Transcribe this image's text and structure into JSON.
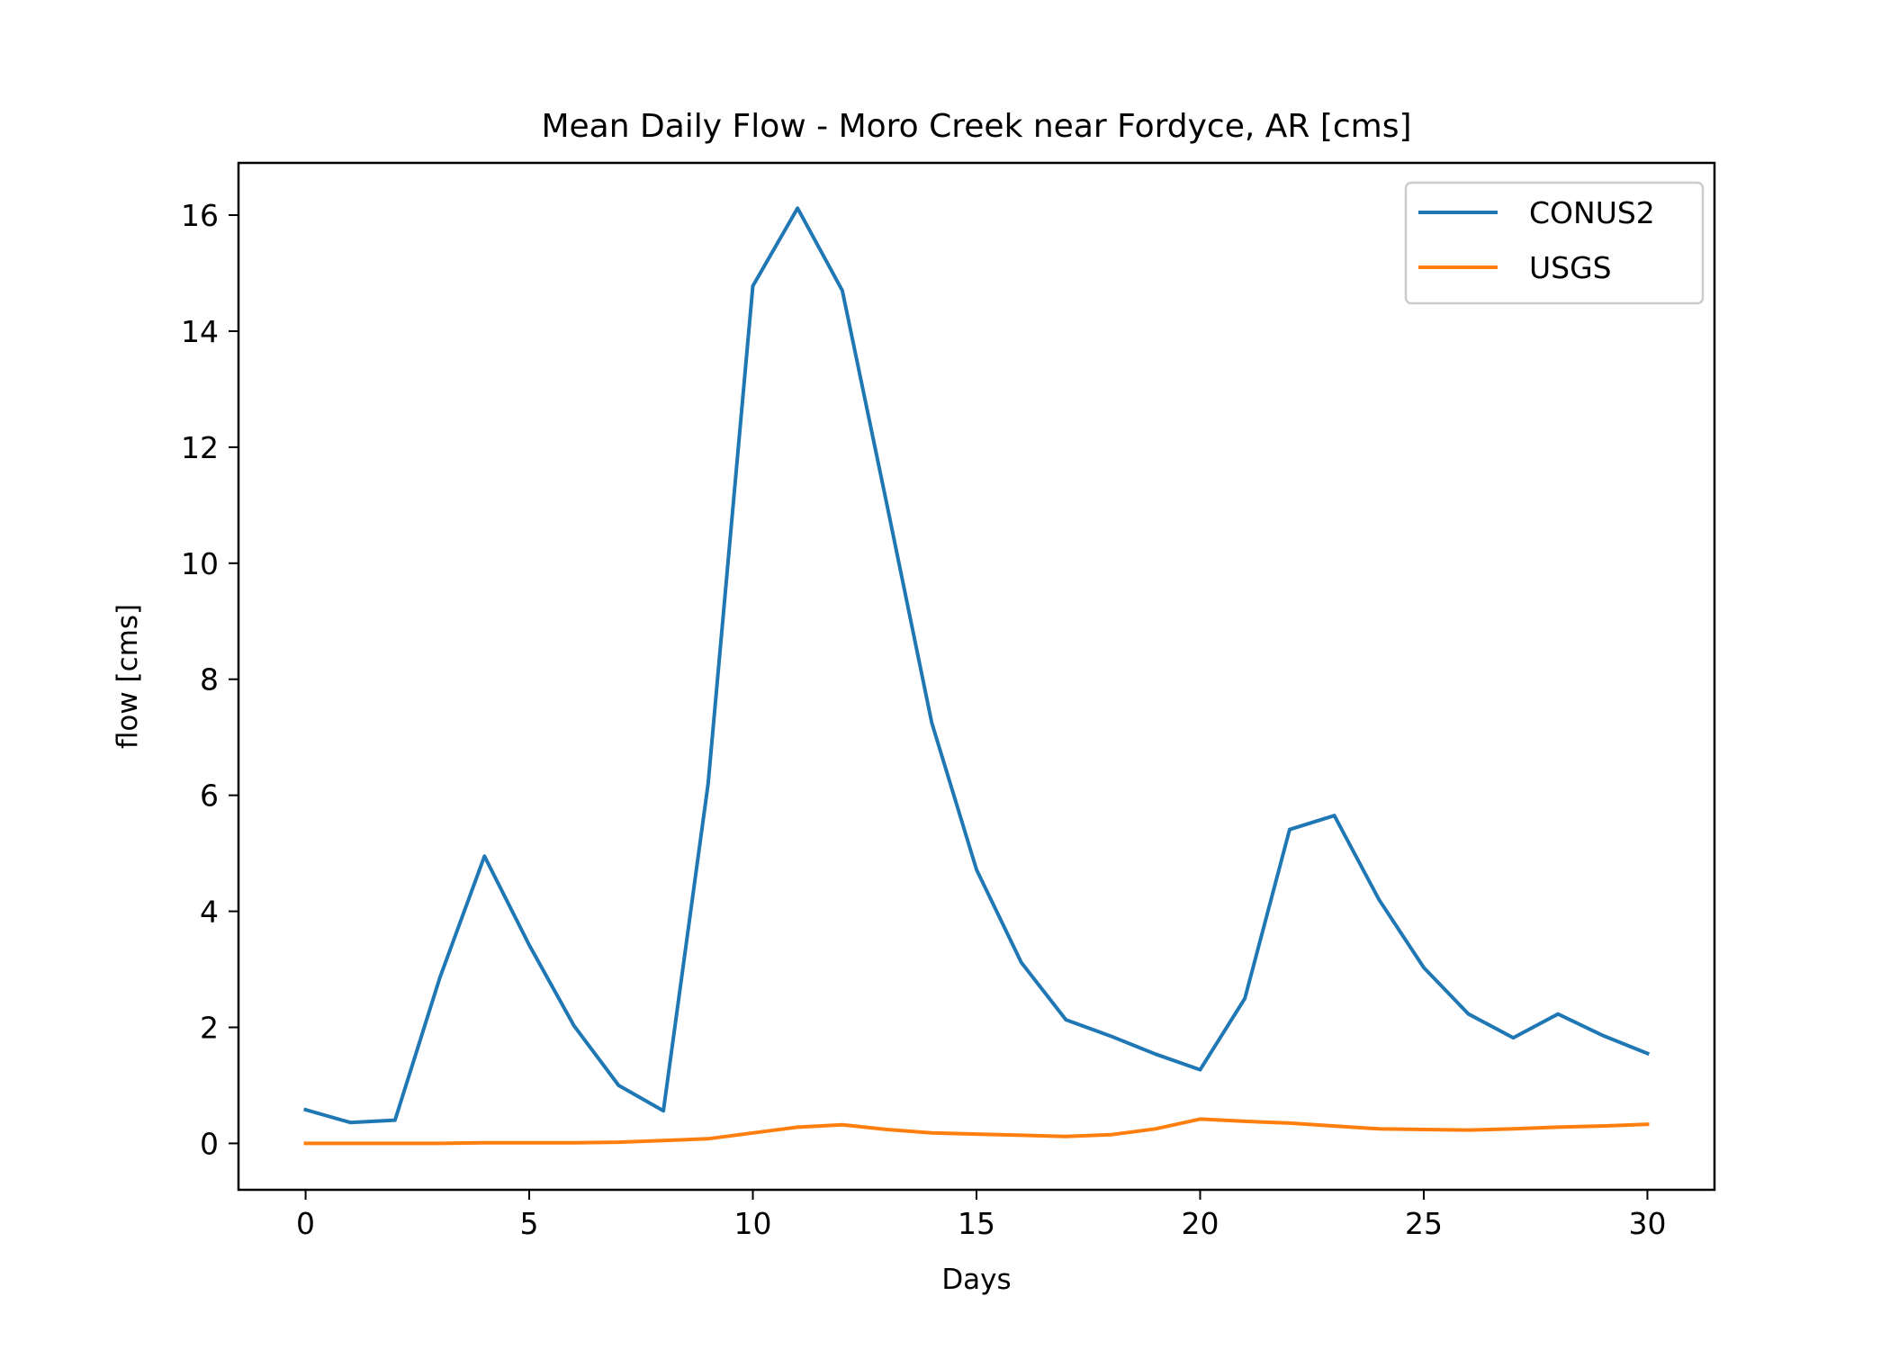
{
  "chart_data": {
    "type": "line",
    "title": "Mean Daily Flow - Moro Creek near Fordyce, AR [cms]",
    "xlabel": "Days",
    "ylabel": "flow [cms]",
    "xlim": [
      -1.5,
      31.5
    ],
    "ylim": [
      -0.8,
      16.9
    ],
    "xticks": [
      0,
      5,
      10,
      15,
      20,
      25,
      30
    ],
    "yticks": [
      0,
      2,
      4,
      6,
      8,
      10,
      12,
      14,
      16
    ],
    "grid": false,
    "legend_position": "top-right",
    "x": [
      0,
      1,
      2,
      3,
      4,
      5,
      6,
      7,
      8,
      9,
      10,
      11,
      12,
      13,
      14,
      15,
      16,
      17,
      18,
      19,
      20,
      21,
      22,
      23,
      24,
      25,
      26,
      27,
      28,
      29,
      30
    ],
    "series": [
      {
        "name": "CONUS2",
        "color": "#1f77b4",
        "values": [
          0.58,
          0.36,
          0.4,
          2.85,
          4.95,
          3.42,
          2.03,
          1.0,
          0.56,
          6.2,
          14.78,
          16.12,
          14.7,
          11.0,
          7.25,
          4.72,
          3.12,
          2.13,
          1.85,
          1.54,
          1.27,
          2.5,
          5.41,
          5.65,
          4.2,
          3.03,
          2.23,
          1.82,
          2.23,
          1.86,
          1.55
        ]
      },
      {
        "name": "USGS",
        "color": "#ff7f0e",
        "values": [
          0.0,
          0.0,
          0.0,
          0.0,
          0.01,
          0.01,
          0.01,
          0.02,
          0.05,
          0.08,
          0.18,
          0.28,
          0.32,
          0.24,
          0.18,
          0.16,
          0.14,
          0.12,
          0.15,
          0.25,
          0.42,
          0.38,
          0.35,
          0.3,
          0.25,
          0.24,
          0.23,
          0.25,
          0.28,
          0.3,
          0.33
        ]
      }
    ]
  }
}
